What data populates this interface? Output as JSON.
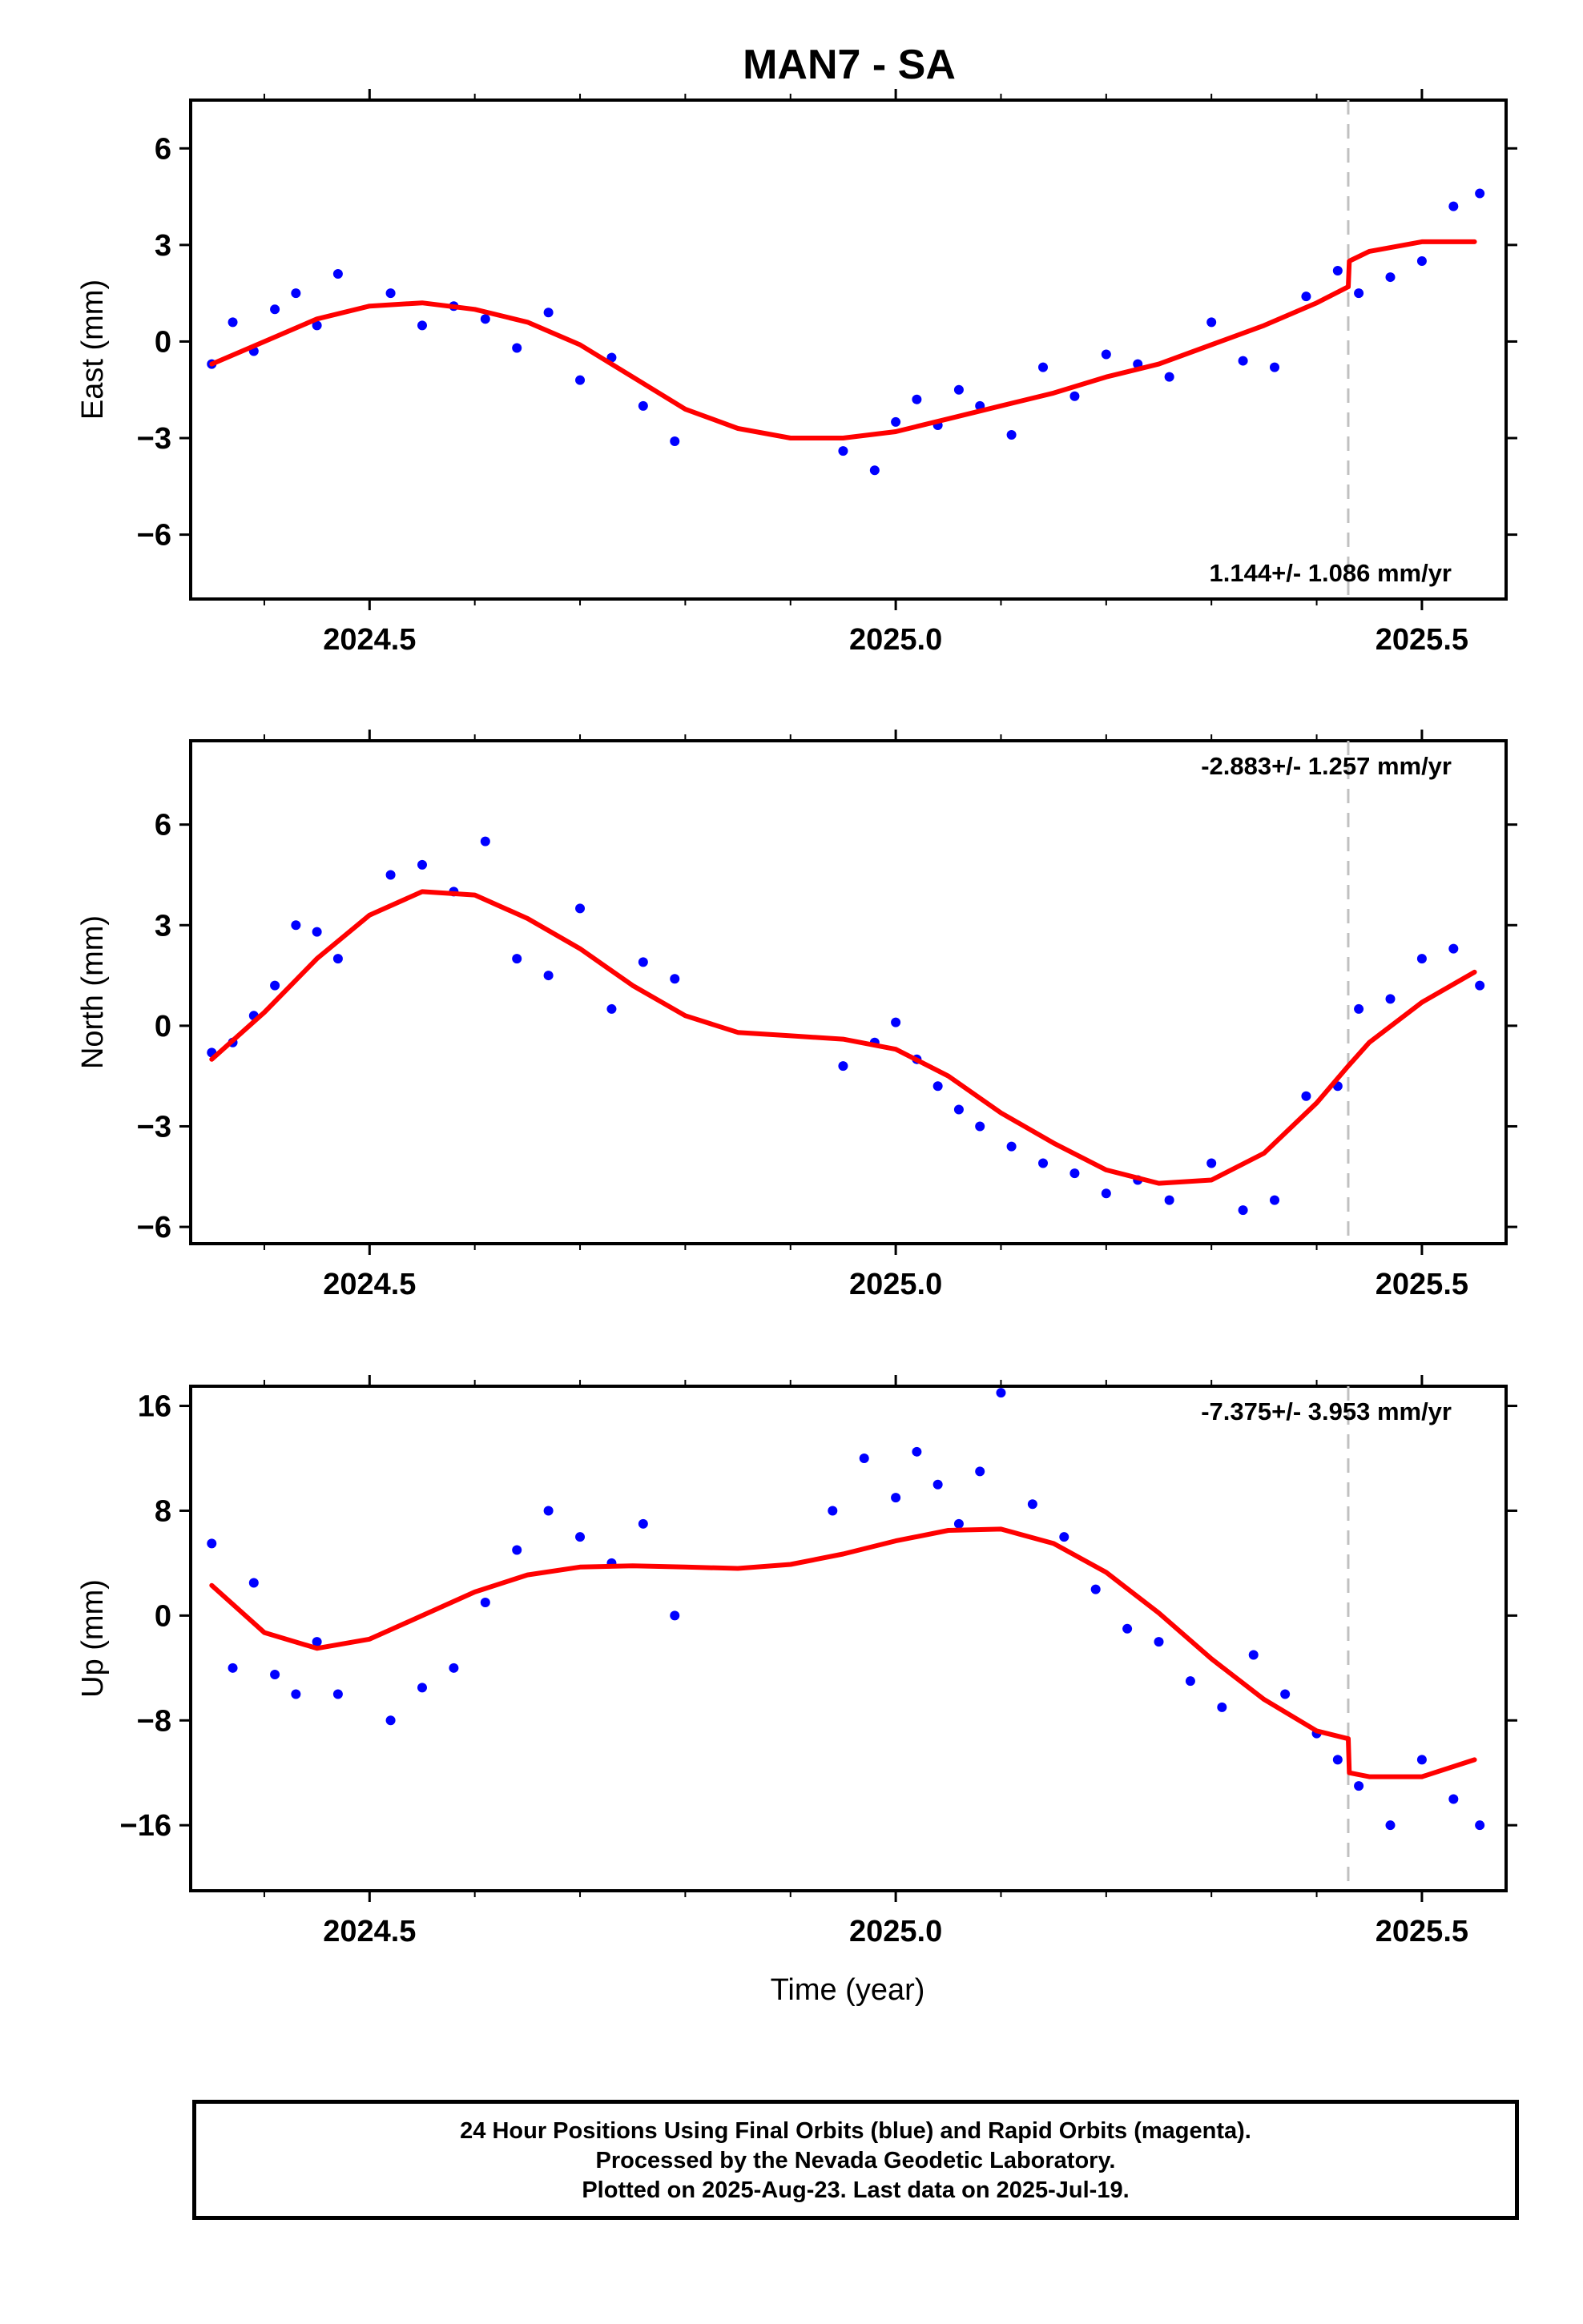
{
  "title": "MAN7 - SA",
  "xlabel": "Time (year)",
  "footer": {
    "line1": "24 Hour Positions Using Final Orbits (blue) and Rapid Orbits (magenta).",
    "line2": "Processed by the Nevada Geodetic Laboratory.",
    "line3": "Plotted on 2025-Aug-23. Last data on 2025-Jul-19."
  },
  "colors": {
    "points": "#0000ff",
    "fit": "#ff0000",
    "break_line": "#c0c0c0",
    "frame": "#000000"
  },
  "chart_data": [
    {
      "type": "scatter",
      "ylabel": "East (mm)",
      "xlim": [
        2024.33,
        2025.58
      ],
      "ylim": [
        -8,
        7.5
      ],
      "yticks": [
        6,
        3,
        0,
        -3,
        -6
      ],
      "ytick_labels": [
        "6",
        "3",
        "0",
        "−3",
        "−6"
      ],
      "xticks": [
        2024.5,
        2025.0,
        2025.5
      ],
      "xtick_labels": [
        "2024.5",
        "2025.0",
        "2025.5"
      ],
      "rate_label": "1.144+/- 1.086 mm/yr",
      "rate_position": "bottom-right",
      "break_x": 2025.43,
      "fit": {
        "x": [
          2024.35,
          2024.4,
          2024.45,
          2024.5,
          2024.55,
          2024.6,
          2024.65,
          2024.7,
          2024.75,
          2024.8,
          2024.85,
          2024.9,
          2024.95,
          2025.0,
          2025.05,
          2025.1,
          2025.15,
          2025.2,
          2025.25,
          2025.3,
          2025.35,
          2025.4,
          2025.43,
          2025.431,
          2025.45,
          2025.5,
          2025.55
        ],
        "y": [
          -0.7,
          0.0,
          0.7,
          1.1,
          1.2,
          1.0,
          0.6,
          -0.1,
          -1.1,
          -2.1,
          -2.7,
          -3.0,
          -3.0,
          -2.8,
          -2.4,
          -2.0,
          -1.6,
          -1.1,
          -0.7,
          -0.1,
          0.5,
          1.2,
          1.7,
          2.5,
          2.8,
          3.1,
          3.1
        ]
      },
      "points": {
        "x": [
          2024.35,
          2024.37,
          2024.39,
          2024.41,
          2024.43,
          2024.45,
          2024.47,
          2024.52,
          2024.55,
          2024.58,
          2024.61,
          2024.64,
          2024.67,
          2024.7,
          2024.73,
          2024.76,
          2024.79,
          2024.95,
          2024.98,
          2025.0,
          2025.02,
          2025.04,
          2025.06,
          2025.08,
          2025.11,
          2025.14,
          2025.17,
          2025.2,
          2025.23,
          2025.26,
          2025.3,
          2025.33,
          2025.36,
          2025.39,
          2025.42,
          2025.44,
          2025.47,
          2025.5,
          2025.53,
          2025.555
        ],
        "y": [
          -0.7,
          0.6,
          -0.3,
          1.0,
          1.5,
          0.5,
          2.1,
          1.5,
          0.5,
          1.1,
          0.7,
          -0.2,
          0.9,
          -1.2,
          -0.5,
          -2.0,
          -3.1,
          -3.4,
          -4.0,
          -2.5,
          -1.8,
          -2.6,
          -1.5,
          -2.0,
          -2.9,
          -0.8,
          -1.7,
          -0.4,
          -0.7,
          -1.1,
          0.6,
          -0.6,
          -0.8,
          1.4,
          2.2,
          1.5,
          2.0,
          2.5,
          4.2,
          4.6
        ]
      }
    },
    {
      "type": "scatter",
      "ylabel": "North (mm)",
      "xlim": [
        2024.33,
        2025.58
      ],
      "ylim": [
        -6.5,
        8.5
      ],
      "yticks": [
        6,
        3,
        0,
        -3,
        -6
      ],
      "ytick_labels": [
        "6",
        "3",
        "0",
        "−3",
        "−6"
      ],
      "xticks": [
        2024.5,
        2025.0,
        2025.5
      ],
      "xtick_labels": [
        "2024.5",
        "2025.0",
        "2025.5"
      ],
      "rate_label": "-2.883+/- 1.257 mm/yr",
      "rate_position": "top-right",
      "break_x": 2025.43,
      "fit": {
        "x": [
          2024.35,
          2024.4,
          2024.45,
          2024.5,
          2024.55,
          2024.6,
          2024.65,
          2024.7,
          2024.75,
          2024.8,
          2024.85,
          2024.9,
          2024.95,
          2025.0,
          2025.05,
          2025.1,
          2025.15,
          2025.2,
          2025.25,
          2025.3,
          2025.35,
          2025.4,
          2025.43,
          2025.45,
          2025.5,
          2025.55
        ],
        "y": [
          -1.0,
          0.4,
          2.0,
          3.3,
          4.0,
          3.9,
          3.2,
          2.3,
          1.2,
          0.3,
          -0.2,
          -0.3,
          -0.4,
          -0.7,
          -1.5,
          -2.6,
          -3.5,
          -4.3,
          -4.7,
          -4.6,
          -3.8,
          -2.3,
          -1.2,
          -0.5,
          0.7,
          1.6
        ]
      },
      "points": {
        "x": [
          2024.35,
          2024.37,
          2024.39,
          2024.41,
          2024.43,
          2024.45,
          2024.47,
          2024.52,
          2024.55,
          2024.58,
          2024.61,
          2024.64,
          2024.67,
          2024.7,
          2024.73,
          2024.76,
          2024.79,
          2024.95,
          2024.98,
          2025.0,
          2025.02,
          2025.04,
          2025.06,
          2025.08,
          2025.11,
          2025.14,
          2025.17,
          2025.2,
          2025.23,
          2025.26,
          2025.3,
          2025.33,
          2025.36,
          2025.39,
          2025.42,
          2025.44,
          2025.47,
          2025.5,
          2025.53,
          2025.555
        ],
        "y": [
          -0.8,
          -0.5,
          0.3,
          1.2,
          3.0,
          2.8,
          2.0,
          4.5,
          4.8,
          4.0,
          5.5,
          2.0,
          1.5,
          3.5,
          0.5,
          1.9,
          1.4,
          -1.2,
          -0.5,
          0.1,
          -1.0,
          -1.8,
          -2.5,
          -3.0,
          -3.6,
          -4.1,
          -4.4,
          -5.0,
          -4.6,
          -5.2,
          -4.1,
          -5.5,
          -5.2,
          -2.1,
          -1.8,
          0.5,
          0.8,
          2.0,
          2.3,
          1.2
        ]
      }
    },
    {
      "type": "scatter",
      "ylabel": "Up (mm)",
      "xlim": [
        2024.33,
        2025.58
      ],
      "ylim": [
        -21,
        17.5
      ],
      "yticks": [
        16,
        8,
        0,
        -8,
        -16
      ],
      "ytick_labels": [
        "16",
        "8",
        "0",
        "−8",
        "−16"
      ],
      "xticks": [
        2024.5,
        2025.0,
        2025.5
      ],
      "xtick_labels": [
        "2024.5",
        "2025.0",
        "2025.5"
      ],
      "rate_label": "-7.375+/- 3.953 mm/yr",
      "rate_position": "top-right",
      "break_x": 2025.43,
      "fit": {
        "x": [
          2024.35,
          2024.4,
          2024.45,
          2024.5,
          2024.55,
          2024.6,
          2024.65,
          2024.7,
          2024.75,
          2024.8,
          2024.85,
          2024.9,
          2024.95,
          2025.0,
          2025.05,
          2025.1,
          2025.15,
          2025.2,
          2025.25,
          2025.3,
          2025.35,
          2025.4,
          2025.43,
          2025.431,
          2025.45,
          2025.5,
          2025.55
        ],
        "y": [
          2.3,
          -1.3,
          -2.5,
          -1.8,
          0.0,
          1.8,
          3.1,
          3.7,
          3.8,
          3.7,
          3.6,
          3.9,
          4.7,
          5.7,
          6.5,
          6.6,
          5.5,
          3.3,
          0.2,
          -3.3,
          -6.4,
          -8.8,
          -9.4,
          -12.0,
          -12.3,
          -12.3,
          -11.0
        ]
      },
      "points": {
        "x": [
          2024.35,
          2024.37,
          2024.39,
          2024.41,
          2024.43,
          2024.45,
          2024.47,
          2024.52,
          2024.55,
          2024.58,
          2024.61,
          2024.64,
          2024.67,
          2024.7,
          2024.73,
          2024.76,
          2024.79,
          2024.94,
          2024.97,
          2025.0,
          2025.02,
          2025.04,
          2025.06,
          2025.08,
          2025.1,
          2025.13,
          2025.16,
          2025.19,
          2025.22,
          2025.25,
          2025.28,
          2025.31,
          2025.34,
          2025.37,
          2025.4,
          2025.42,
          2025.44,
          2025.47,
          2025.5,
          2025.53,
          2025.555
        ],
        "y": [
          5.5,
          -4.0,
          2.5,
          -4.5,
          -6.0,
          -2.0,
          -6.0,
          -8.0,
          -5.5,
          -4.0,
          1.0,
          5.0,
          8.0,
          6.0,
          4.0,
          7.0,
          0.0,
          8.0,
          12.0,
          9.0,
          12.5,
          10.0,
          7.0,
          11.0,
          17.0,
          8.5,
          6.0,
          2.0,
          -1.0,
          -2.0,
          -5.0,
          -7.0,
          -3.0,
          -6.0,
          -9.0,
          -11.0,
          -13.0,
          -16.0,
          -11.0,
          -14.0,
          -16.0
        ]
      }
    }
  ]
}
